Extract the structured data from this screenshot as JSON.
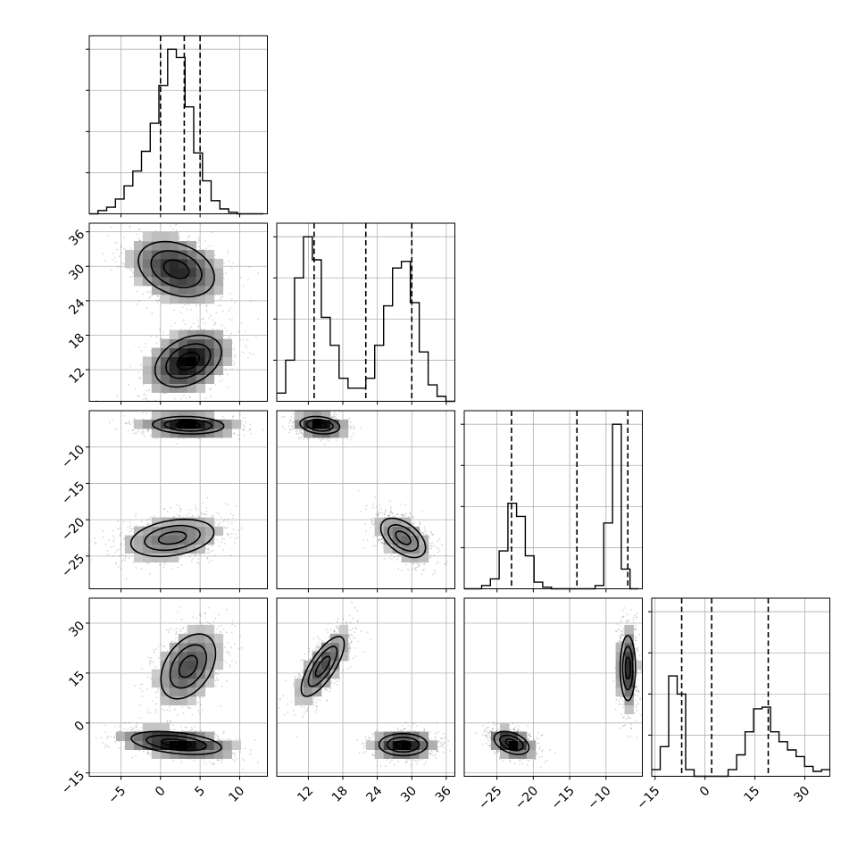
{
  "colors": {
    "density_dark": "#000000",
    "density_light": "#cccccc",
    "grid": "#b0b0b0"
  },
  "chart_data": {
    "type": "corner",
    "parameters": [
      {
        "index": 0,
        "range": [
          -9,
          13.5
        ],
        "ticks": [
          -5,
          0,
          5,
          10
        ],
        "hist_quantiles": [
          0,
          3,
          5
        ]
      },
      {
        "index": 1,
        "range": [
          6.5,
          37.5
        ],
        "ticks": [
          12,
          18,
          24,
          30,
          36
        ],
        "hist_quantiles": [
          13,
          22,
          30
        ]
      },
      {
        "index": 2,
        "range": [
          -29.5,
          -5
        ],
        "ticks": [
          -25,
          -20,
          -15,
          -10
        ],
        "hist_quantiles": [
          -23,
          -14,
          -7
        ]
      },
      {
        "index": 3,
        "range": [
          -16,
          37.5
        ],
        "ticks": [
          -15,
          0,
          15,
          30
        ],
        "hist_quantiles": [
          -7,
          2,
          19
        ]
      }
    ],
    "histograms": [
      {
        "param": 0,
        "edges_start": -9,
        "bin_width": 1.1,
        "counts": [
          0,
          0.02,
          0.04,
          0.09,
          0.17,
          0.26,
          0.38,
          0.55,
          0.78,
          1.0,
          0.95,
          0.65,
          0.37,
          0.2,
          0.08,
          0.03,
          0.01,
          0,
          0,
          0
        ]
      },
      {
        "param": 1,
        "edges_start": 6.5,
        "bin_width": 1.55,
        "counts": [
          0.05,
          0.25,
          0.75,
          1.0,
          0.86,
          0.51,
          0.34,
          0.14,
          0.08,
          0.08,
          0.14,
          0.34,
          0.58,
          0.81,
          0.85,
          0.6,
          0.3,
          0.1,
          0.03,
          0
        ]
      },
      {
        "param": 2,
        "edges_start": -29.5,
        "bin_width": 1.2,
        "counts": [
          0,
          0,
          0.02,
          0.06,
          0.23,
          0.52,
          0.44,
          0.2,
          0.04,
          0.01,
          0,
          0,
          0,
          0,
          0,
          0.02,
          0.4,
          1.0,
          0.12,
          0
        ]
      },
      {
        "param": 3,
        "edges_start": -16,
        "bin_width": 2.55,
        "counts": [
          0.04,
          0.18,
          0.61,
          0.5,
          0.04,
          0,
          0,
          0,
          0,
          0.04,
          0.13,
          0.27,
          0.41,
          0.42,
          0.27,
          0.21,
          0.16,
          0.12,
          0.06,
          0.03,
          0.04
        ]
      }
    ],
    "pairs": [
      {
        "row": 1,
        "col": 0,
        "clusters": [
          {
            "mean": [
              2,
              29.5
            ],
            "sd": [
              3.2,
              3.2
            ],
            "rho": -0.3,
            "weight": 0.5
          },
          {
            "mean": [
              3.5,
              13.5
            ],
            "sd": [
              2.8,
              3.0
            ],
            "rho": 0.35,
            "weight": 0.5
          }
        ]
      },
      {
        "row": 2,
        "col": 0,
        "clusters": [
          {
            "mean": [
              3.5,
              -7
            ],
            "sd": [
              3.0,
              0.8
            ],
            "rho": -0.1,
            "weight": 0.5
          },
          {
            "mean": [
              1.5,
              -22.5
            ],
            "sd": [
              3.5,
              1.7
            ],
            "rho": 0.3,
            "weight": 0.5
          }
        ]
      },
      {
        "row": 2,
        "col": 1,
        "clusters": [
          {
            "mean": [
              14,
              -7
            ],
            "sd": [
              2.3,
              0.8
            ],
            "rho": -0.2,
            "weight": 0.5
          },
          {
            "mean": [
              28.5,
              -22.5
            ],
            "sd": [
              2.6,
              1.8
            ],
            "rho": -0.5,
            "weight": 0.5
          }
        ]
      },
      {
        "row": 3,
        "col": 0,
        "clusters": [
          {
            "mean": [
              3.5,
              17
            ],
            "sd": [
              2.3,
              6.5
            ],
            "rho": 0.4,
            "weight": 0.5
          },
          {
            "mean": [
              2,
              -6
            ],
            "sd": [
              3.8,
              2.3
            ],
            "rho": -0.4,
            "weight": 0.5
          }
        ]
      },
      {
        "row": 3,
        "col": 1,
        "clusters": [
          {
            "mean": [
              14.5,
              17
            ],
            "sd": [
              2.5,
              6.0
            ],
            "rho": 0.75,
            "weight": 0.5
          },
          {
            "mean": [
              28.5,
              -6.5
            ],
            "sd": [
              2.8,
              2.2
            ],
            "rho": 0,
            "weight": 0.5
          }
        ]
      },
      {
        "row": 3,
        "col": 2,
        "clusters": [
          {
            "mean": [
              -23,
              -6
            ],
            "sd": [
              1.6,
              2.3
            ],
            "rho": -0.4,
            "weight": 0.5
          },
          {
            "mean": [
              -7,
              16.5
            ],
            "sd": [
              0.7,
              6.5
            ],
            "rho": 0,
            "weight": 0.5
          }
        ]
      }
    ],
    "contour_levels": [
      0.39,
      0.86,
      0.99
    ],
    "grid": true
  }
}
